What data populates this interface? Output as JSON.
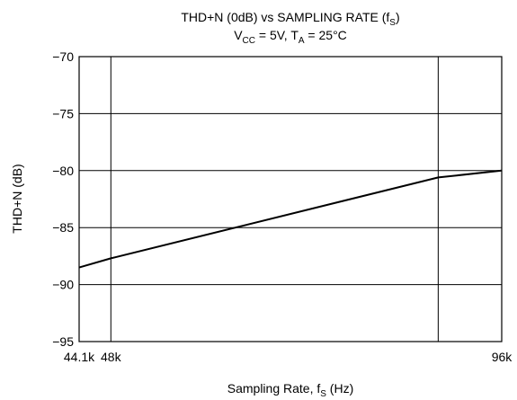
{
  "chart_data": {
    "type": "line",
    "title": {
      "main": "THD+N (0dB) vs SAMPLING RATE (f",
      "main_sub": "S",
      "main_end": ")",
      "cond_vcc": "V",
      "cond_vcc_sub": "CC",
      "cond_vcc_end": " = 5V, T",
      "cond_ta_sub": "A",
      "cond_ta_end": " = 25°C"
    },
    "xlabel": {
      "main": "Sampling Rate, f",
      "sub": "S",
      "end": " (Hz)"
    },
    "ylabel": "THD+N (dB)",
    "x_ticks": [
      {
        "value": 44.1,
        "label": "44.1k"
      },
      {
        "value": 48,
        "label": "48k"
      },
      {
        "value": 96,
        "label": "96k"
      }
    ],
    "x_gridlines": [
      48,
      88.2
    ],
    "xlim": [
      44.1,
      96
    ],
    "ylim": [
      -95,
      -70
    ],
    "y_ticks": [
      {
        "value": -70,
        "label": "−70"
      },
      {
        "value": -75,
        "label": "−75"
      },
      {
        "value": -80,
        "label": "−80"
      },
      {
        "value": -85,
        "label": "−85"
      },
      {
        "value": -90,
        "label": "−90"
      },
      {
        "value": -95,
        "label": "−95"
      }
    ],
    "grid": true,
    "series": [
      {
        "x": [
          44.1,
          48,
          88.2,
          96
        ],
        "y": [
          -88.5,
          -87.7,
          -80.6,
          -80.0
        ]
      }
    ],
    "colors": {
      "line": "#000000",
      "grid": "#000000",
      "background": "#ffffff"
    }
  }
}
